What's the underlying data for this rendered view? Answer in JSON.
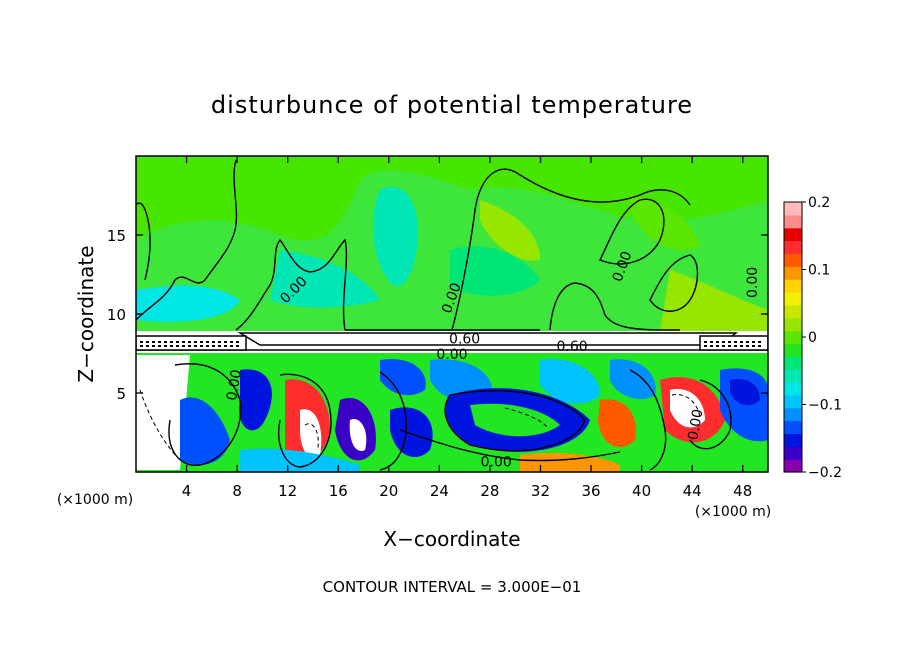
{
  "chart_data": {
    "type": "heatmap",
    "title": "disturbunce of potential temperature",
    "xlabel": "X−coordinate",
    "ylabel": "Z−coordinate",
    "x_unit_label": "(×1000 m)",
    "y_unit_label": "(×1000 m)",
    "footer": "CONTOUR INTERVAL = 3.000E−01",
    "xlim": [
      0,
      50
    ],
    "ylim": [
      0,
      20
    ],
    "x_ticks": [
      4,
      8,
      12,
      16,
      20,
      24,
      28,
      32,
      36,
      40,
      44,
      48
    ],
    "x_tick_labels": [
      "4",
      "8",
      "12",
      "16",
      "20",
      "24",
      "28",
      "32",
      "36",
      "40",
      "44",
      "48"
    ],
    "y_ticks": [
      5,
      10,
      15
    ],
    "y_tick_labels": [
      "5",
      "10",
      "15"
    ],
    "colorbar": {
      "range": [
        -0.2,
        0.2
      ],
      "ticks": [
        -0.2,
        -0.1,
        0,
        0.1,
        0.2
      ],
      "tick_labels": [
        "−0.2",
        "−0.1",
        "0",
        "0.1",
        "0.2"
      ],
      "colors": [
        "#8a00b0",
        "#3a00c8",
        "#0014e0",
        "#0050ff",
        "#0090ff",
        "#00c4ff",
        "#00e6e6",
        "#00e6b4",
        "#00e676",
        "#22e622",
        "#5ae600",
        "#96e600",
        "#c8e600",
        "#f0f000",
        "#ffd200",
        "#ff9600",
        "#ff5a00",
        "#ff2d2d",
        "#e60000",
        "#ff8c8c",
        "#ffbaba"
      ]
    },
    "contour_labels": [
      {
        "text": "0.00",
        "x": 12.5,
        "z": 11.5,
        "angle": -45
      },
      {
        "text": "0.00",
        "x": 25.0,
        "z": 11.0,
        "angle": -70
      },
      {
        "text": "0.00",
        "x": 38.5,
        "z": 13.0,
        "angle": -70
      },
      {
        "text": "0.00",
        "x": 48.8,
        "z": 12.0,
        "angle": -90
      },
      {
        "text": "0.60",
        "x": 26.0,
        "z": 8.4,
        "angle": 0
      },
      {
        "text": "0.00",
        "x": 25.0,
        "z": 7.4,
        "angle": 0
      },
      {
        "text": "0.60",
        "x": 34.5,
        "z": 7.9,
        "angle": 0
      },
      {
        "text": "0.00",
        "x": 7.8,
        "z": 5.5,
        "angle": -80
      },
      {
        "text": "0.00",
        "x": 28.5,
        "z": 0.6,
        "angle": 0
      },
      {
        "text": "0.00",
        "x": 44.3,
        "z": 3.0,
        "angle": -80
      }
    ]
  }
}
